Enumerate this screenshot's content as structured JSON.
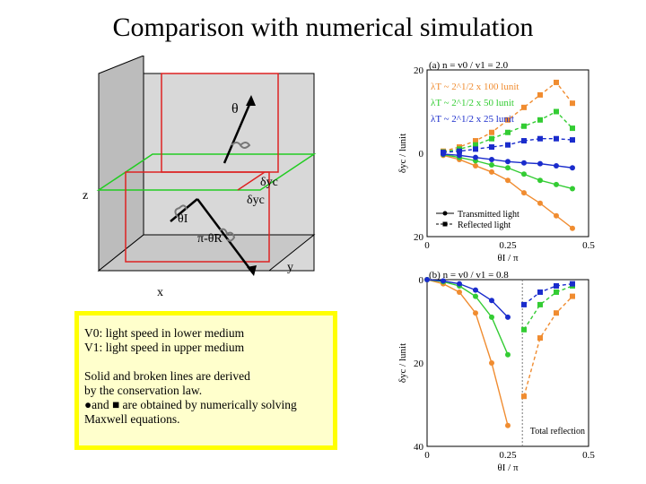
{
  "title": "Comparison with numerical simulation",
  "diagram": {
    "axis_z": "z",
    "axis_x": "x",
    "axis_y": "y",
    "label_theta": "θ",
    "label_theta_i": "θI",
    "label_pi_theta_r": "π-θR",
    "label_dyc": "δyc",
    "label_dyc2": "δyc"
  },
  "notes": {
    "v0_line": "V0: light speed in lower medium",
    "v1_line": "V1: light speed in upper medium",
    "line3": "Solid and broken lines are derived",
    "line4": "by the conservation law.",
    "line5": "●and ■ are obtained by numerically solving",
    "line6": "Maxwell equations."
  },
  "chart_data": [
    {
      "type": "line",
      "title": "(a) n = v0 / v1 = 2.0",
      "xlabel": "θI / π",
      "ylabel": "δyc / lunit",
      "xlim": [
        0,
        0.5
      ],
      "ylim": [
        -20,
        20
      ],
      "x_ticks": [
        "0",
        "0.25",
        "0.5"
      ],
      "y_ticks": [
        "20",
        "0",
        "20"
      ],
      "annotations": [
        "λT ~ 2^1/2 x 100 lunit",
        "λT ~ 2^1/2 x 50 lunit",
        "λT ~ 2^1/2 x 25 lunit"
      ],
      "legend": [
        "Transmitted light",
        "Reflected light"
      ],
      "colors": {
        "orange": "#f08c30",
        "green": "#33cc33",
        "blue": "#1a2ccc"
      },
      "series": [
        {
          "name": "λT ~ 2^1/2 x 100 lunit",
          "color": "#f08c30",
          "kind": "transmitted",
          "x": [
            0.05,
            0.1,
            0.15,
            0.2,
            0.25,
            0.3,
            0.35,
            0.4,
            0.45
          ],
          "y": [
            0.5,
            1.5,
            3,
            4.5,
            6.5,
            9.5,
            12,
            15,
            18
          ]
        },
        {
          "name": "λT ~ 2^1/2 x 50 lunit",
          "color": "#33cc33",
          "kind": "transmitted",
          "x": [
            0.05,
            0.1,
            0.15,
            0.2,
            0.25,
            0.3,
            0.35,
            0.4,
            0.45
          ],
          "y": [
            0.3,
            1,
            1.8,
            2.8,
            3.5,
            5,
            6.5,
            7.5,
            8.5
          ]
        },
        {
          "name": "λT ~ 2^1/2 x 25 lunit",
          "color": "#1a2ccc",
          "kind": "transmitted",
          "x": [
            0.05,
            0.1,
            0.15,
            0.2,
            0.25,
            0.3,
            0.35,
            0.4,
            0.45
          ],
          "y": [
            0.2,
            0.5,
            1,
            1.5,
            2,
            2.3,
            2.5,
            3,
            3.5
          ]
        },
        {
          "name": "λT ~ 2^1/2 x 100 lunit",
          "color": "#f08c30",
          "kind": "reflected",
          "x": [
            0.05,
            0.1,
            0.15,
            0.2,
            0.25,
            0.3,
            0.35,
            0.4,
            0.45
          ],
          "y": [
            -0.5,
            -1.5,
            -3,
            -5,
            -8,
            -11,
            -14,
            -17,
            -12
          ]
        },
        {
          "name": "λT ~ 2^1/2 x 50 lunit",
          "color": "#33cc33",
          "kind": "reflected",
          "x": [
            0.05,
            0.1,
            0.15,
            0.2,
            0.25,
            0.3,
            0.35,
            0.4,
            0.45
          ],
          "y": [
            -0.3,
            -1,
            -2,
            -3.5,
            -5,
            -6.5,
            -8,
            -10,
            -6
          ]
        },
        {
          "name": "λT ~ 2^1/2 x 25 lunit",
          "color": "#1a2ccc",
          "kind": "reflected",
          "x": [
            0.05,
            0.1,
            0.15,
            0.2,
            0.25,
            0.3,
            0.35,
            0.4,
            0.45
          ],
          "y": [
            -0.2,
            -0.5,
            -1,
            -1.5,
            -2,
            -3,
            -3.5,
            -3.5,
            -3.2
          ]
        }
      ]
    },
    {
      "type": "line",
      "title": "(b) n = v0 / v1 = 0.8",
      "xlabel": "θI / π",
      "ylabel": "δyc / lunit",
      "xlim": [
        0,
        0.5
      ],
      "ylim": [
        0,
        40
      ],
      "x_ticks": [
        "0",
        "0.25",
        "0.5"
      ],
      "y_ticks": [
        "0",
        "20",
        "40"
      ],
      "annotations": [
        "Total reflection"
      ],
      "critical_angle": 0.295,
      "series": [
        {
          "color": "#f08c30",
          "kind": "transmitted",
          "x": [
            0,
            0.05,
            0.1,
            0.15,
            0.2,
            0.25
          ],
          "y": [
            0,
            1,
            3,
            8,
            20,
            35
          ]
        },
        {
          "color": "#33cc33",
          "kind": "transmitted",
          "x": [
            0,
            0.05,
            0.1,
            0.15,
            0.2,
            0.25
          ],
          "y": [
            0,
            0.5,
            1.5,
            4,
            9,
            18
          ]
        },
        {
          "color": "#1a2ccc",
          "kind": "transmitted",
          "x": [
            0,
            0.05,
            0.1,
            0.15,
            0.2,
            0.25
          ],
          "y": [
            0,
            0.3,
            1,
            2.5,
            5,
            9
          ]
        },
        {
          "color": "#f08c30",
          "kind": "reflected",
          "x": [
            0.3,
            0.35,
            0.4,
            0.45
          ],
          "y": [
            28,
            14,
            8,
            4
          ]
        },
        {
          "color": "#33cc33",
          "kind": "reflected",
          "x": [
            0.3,
            0.35,
            0.4,
            0.45
          ],
          "y": [
            12,
            6,
            3,
            1.5
          ]
        },
        {
          "color": "#1a2ccc",
          "kind": "reflected",
          "x": [
            0.3,
            0.35,
            0.4,
            0.45
          ],
          "y": [
            6,
            3,
            1.5,
            1
          ]
        }
      ]
    }
  ]
}
